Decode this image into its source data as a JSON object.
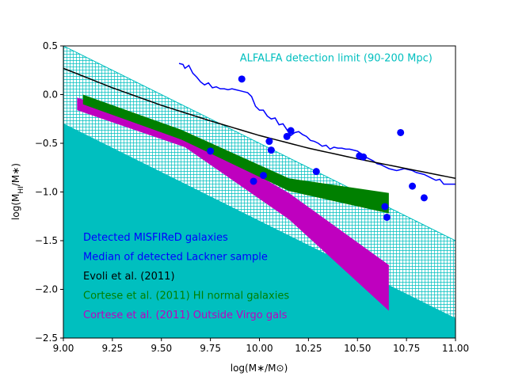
{
  "chart_data": {
    "type": "scatter",
    "xlabel": "log(M∗/M⊙)",
    "ylabel": "log(Mₕᵢ/M∗)",
    "ylabel_main": "log(M",
    "ylabel_sub": "HI",
    "ylabel_tail": "/M∗)",
    "xlim": [
      9.0,
      11.0
    ],
    "ylim": [
      -2.5,
      0.5
    ],
    "xticks": [
      "9.00",
      "9.25",
      "9.50",
      "9.75",
      "10.00",
      "10.25",
      "10.50",
      "10.75",
      "11.00"
    ],
    "yticks": [
      "0.5",
      "0.0",
      "−0.5",
      "−1.0",
      "−1.5",
      "−2.0",
      "−2.5"
    ],
    "grid": false,
    "annotation": {
      "text": "ALFALFA detection limit (90-200 Mpc)",
      "x": 9.9,
      "y": 0.34,
      "color": "#00bfbf"
    },
    "colors": {
      "cyan": "#00bfbf",
      "blue": "#0000ff",
      "black": "#000000",
      "green": "#008000",
      "magenta": "#bf00bf"
    },
    "detection_limit": {
      "filled_upper_edge": {
        "x": [
          9.0,
          11.0
        ],
        "y": [
          -0.3,
          -2.3
        ]
      },
      "hatched_upper_edge": {
        "x": [
          9.0,
          11.0
        ],
        "y": [
          0.5,
          -1.5
        ]
      }
    },
    "series": [
      {
        "name": "Detected MISFIReD galaxies",
        "kind": "scatter",
        "color": "#0000ff",
        "x": [
          9.91,
          9.75,
          9.97,
          10.02,
          10.05,
          10.06,
          10.14,
          10.16,
          10.29,
          10.51,
          10.53,
          10.64,
          10.65,
          10.72,
          10.78,
          10.84
        ],
        "y": [
          0.16,
          -0.58,
          -0.89,
          -0.83,
          -0.48,
          -0.57,
          -0.43,
          -0.37,
          -0.79,
          -0.63,
          -0.64,
          -1.15,
          -1.26,
          -0.39,
          -0.94,
          -1.06
        ]
      },
      {
        "name": "Median of detected Lackner sample",
        "kind": "line",
        "color": "#0000ff",
        "x": [
          9.59,
          9.61,
          9.62,
          9.64,
          9.66,
          9.68,
          9.7,
          9.72,
          9.74,
          9.76,
          9.78,
          9.8,
          9.82,
          9.84,
          9.86,
          9.88,
          9.9,
          9.92,
          9.94,
          9.96,
          9.98,
          10.0,
          10.02,
          10.04,
          10.06,
          10.08,
          10.1,
          10.12,
          10.14,
          10.16,
          10.18,
          10.2,
          10.22,
          10.24,
          10.26,
          10.28,
          10.3,
          10.32,
          10.34,
          10.36,
          10.38,
          10.4,
          10.42,
          10.44,
          10.46,
          10.48,
          10.5,
          10.52,
          10.54,
          10.56,
          10.58,
          10.6,
          10.62,
          10.64,
          10.66,
          10.68,
          10.7,
          10.72,
          10.74,
          10.76,
          10.78,
          10.8,
          10.82,
          10.84,
          10.86,
          10.88,
          10.9,
          10.92,
          10.94,
          10.96,
          10.98,
          11.0
        ],
        "y": [
          0.32,
          0.31,
          0.27,
          0.3,
          0.22,
          0.18,
          0.13,
          0.1,
          0.12,
          0.07,
          0.08,
          0.06,
          0.06,
          0.05,
          0.06,
          0.05,
          0.04,
          0.03,
          0.02,
          -0.02,
          -0.12,
          -0.16,
          -0.16,
          -0.22,
          -0.25,
          -0.24,
          -0.31,
          -0.3,
          -0.36,
          -0.42,
          -0.39,
          -0.38,
          -0.41,
          -0.43,
          -0.47,
          -0.48,
          -0.5,
          -0.53,
          -0.52,
          -0.56,
          -0.54,
          -0.55,
          -0.55,
          -0.56,
          -0.56,
          -0.57,
          -0.58,
          -0.61,
          -0.64,
          -0.66,
          -0.68,
          -0.71,
          -0.72,
          -0.74,
          -0.76,
          -0.77,
          -0.78,
          -0.77,
          -0.76,
          -0.77,
          -0.78,
          -0.8,
          -0.81,
          -0.82,
          -0.84,
          -0.86,
          -0.88,
          -0.87,
          -0.92,
          -0.92,
          -0.92,
          -0.92
        ]
      },
      {
        "name": "Evoli et al. (2011)",
        "kind": "curve",
        "color": "#000000",
        "x": [
          9.0,
          9.25,
          9.5,
          9.75,
          10.0,
          10.25,
          10.5,
          10.75,
          11.0
        ],
        "y": [
          0.27,
          0.07,
          -0.11,
          -0.27,
          -0.42,
          -0.55,
          -0.66,
          -0.76,
          -0.86
        ]
      },
      {
        "name": "Cortese et al. (2011) HI normal galaxies",
        "kind": "band",
        "color": "#008000",
        "x": [
          9.1,
          9.6,
          10.15,
          10.66
        ],
        "upper": [
          0.0,
          -0.36,
          -0.86,
          -1.01
        ],
        "lower": [
          -0.1,
          -0.46,
          -0.99,
          -1.22
        ]
      },
      {
        "name": "Cortese et al. (2011) Outside Virgo gals",
        "kind": "band",
        "color": "#bf00bf",
        "x": [
          9.07,
          9.62,
          10.15,
          10.66
        ],
        "upper": [
          -0.03,
          -0.4,
          -1.01,
          -1.75
        ],
        "lower": [
          -0.16,
          -0.54,
          -1.28,
          -2.22
        ]
      }
    ],
    "legend": {
      "placement": "lower-left",
      "entries": [
        {
          "text": "Detected MISFIReD galaxies",
          "color": "#0000ff"
        },
        {
          "text": "Median of detected Lackner sample",
          "color": "#0000ff"
        },
        {
          "text": "Evoli et al. (2011)",
          "color": "#000000"
        },
        {
          "text": "Cortese et al. (2011) HI normal galaxies",
          "color": "#008000"
        },
        {
          "text": "Cortese et al. (2011) Outside Virgo gals",
          "color": "#bf00bf"
        }
      ]
    }
  }
}
